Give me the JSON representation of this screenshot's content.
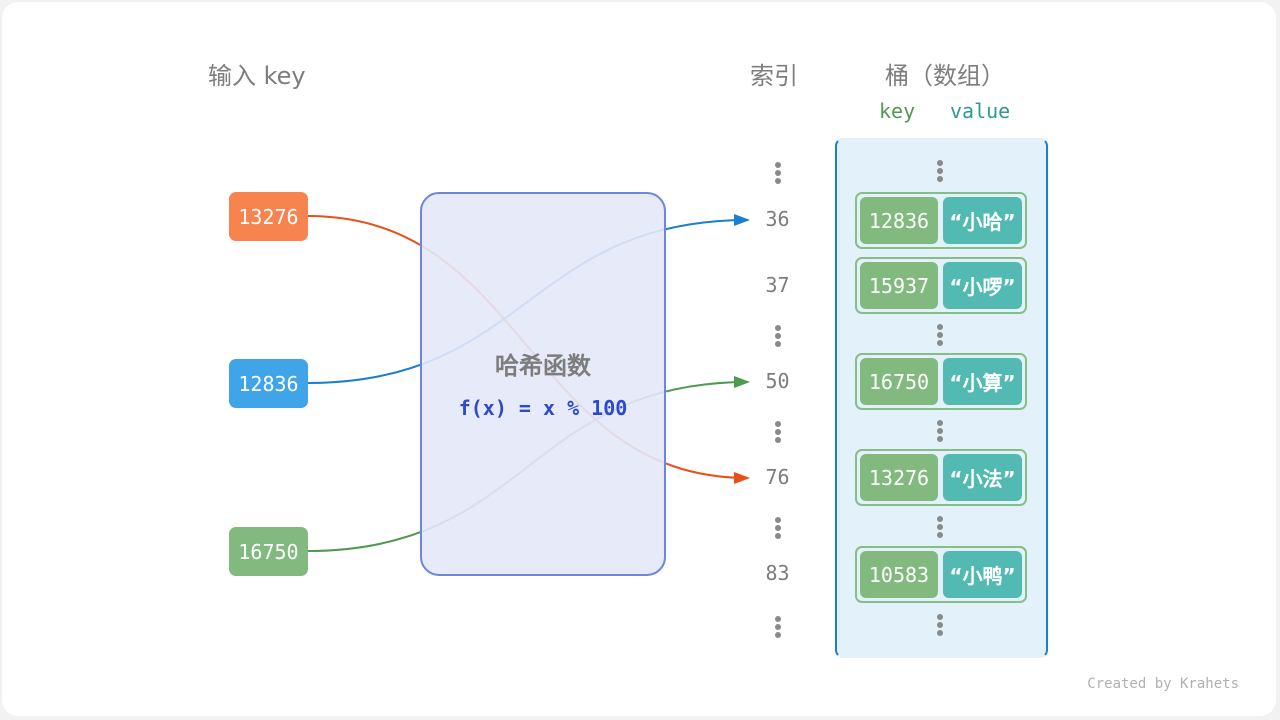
{
  "headers": {
    "input_key": "输入 key",
    "index": "索引",
    "bucket": "桶（数组）",
    "key": "key",
    "value": "value"
  },
  "inputs": [
    {
      "key": "13276",
      "color": "#f7844f"
    },
    {
      "key": "12836",
      "color": "#3fa4e8"
    },
    {
      "key": "16750",
      "color": "#82b97f"
    }
  ],
  "hash_function": {
    "title": "哈希函数",
    "formula": "f(x) = x % 100"
  },
  "indices": [
    "36",
    "37",
    "50",
    "76",
    "83"
  ],
  "buckets": [
    {
      "key": "12836",
      "value": "“小哈”"
    },
    {
      "key": "15937",
      "value": "“小啰”"
    },
    {
      "key": "16750",
      "value": "“小算”"
    },
    {
      "key": "13276",
      "value": "“小法”"
    },
    {
      "key": "10583",
      "value": "“小鸭”"
    }
  ],
  "arrows": [
    {
      "from": "13276",
      "to": "76",
      "color": "#e8501a"
    },
    {
      "from": "12836",
      "to": "36",
      "color": "#1a7fcf"
    },
    {
      "from": "16750",
      "to": "50",
      "color": "#4e9a4e"
    }
  ],
  "credit": "Created by Krahets"
}
